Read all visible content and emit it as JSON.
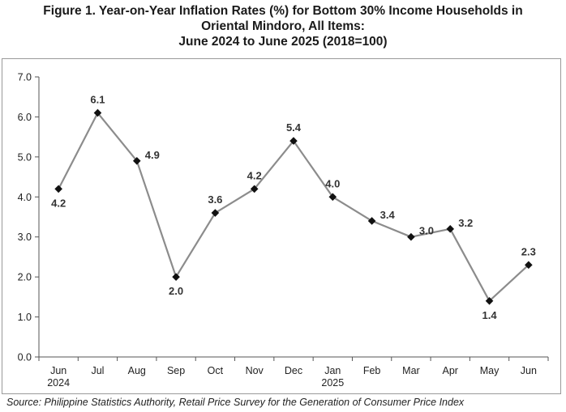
{
  "title_lines": [
    "Figure 1. Year-on-Year Inflation Rates (%) for Bottom 30% Income Households in",
    "Oriental Mindoro, All Items:",
    "June 2024 to June 2025 (2018=100)"
  ],
  "source": "Source: Philippine Statistics Authority, Retail Price Survey for the Generation of Consumer Price Index",
  "chart_data": {
    "type": "line",
    "title": "Figure 1. Year-on-Year Inflation Rates (%) for Bottom 30% Income Households in Oriental Mindoro, All Items: June 2024 to June 2025 (2018=100)",
    "categories": [
      "Jun",
      "Jul",
      "Aug",
      "Sep",
      "Oct",
      "Nov",
      "Dec",
      "Jan",
      "Feb",
      "Mar",
      "Apr",
      "May",
      "Jun"
    ],
    "year_labels": {
      "0": "2024",
      "7": "2025"
    },
    "series": [
      {
        "values": [
          4.2,
          6.1,
          4.9,
          2.0,
          3.6,
          4.2,
          5.4,
          4.0,
          3.4,
          3.0,
          3.2,
          1.4,
          2.3
        ],
        "data_labels": [
          "4.2",
          "6.1",
          "4.9",
          "2.0",
          "3.6",
          "4.2",
          "5.4",
          "4.0",
          "3.4",
          "3.0",
          "3.2",
          "1.4",
          "2.3"
        ],
        "label_positions": [
          "below",
          "above",
          "right",
          "below",
          "above",
          "above",
          "above",
          "above",
          "right",
          "right",
          "right",
          "below",
          "above"
        ]
      }
    ],
    "yticks": [
      "0.0",
      "1.0",
      "2.0",
      "3.0",
      "4.0",
      "5.0",
      "6.0",
      "7.0"
    ],
    "ylim": [
      0,
      7
    ],
    "grid": false,
    "legend": "none",
    "line_color": "#8c8c8c",
    "marker_color": "#111111"
  }
}
